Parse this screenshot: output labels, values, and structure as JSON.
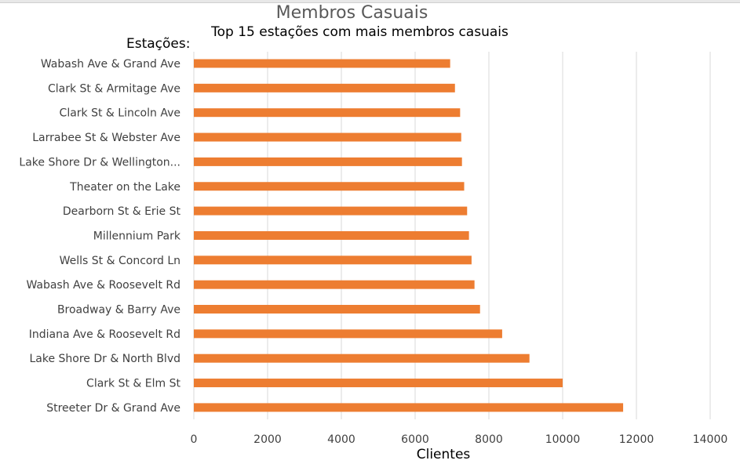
{
  "chart_data": {
    "type": "bar",
    "orientation": "horizontal",
    "title": "Membros Casuais",
    "subtitle": "Top 15 estações com mais membros casuais",
    "ylabel": "Estações:",
    "xlabel": "Clientes",
    "categories": [
      "Wabash Ave & Grand Ave",
      "Clark St & Armitage Ave",
      "Clark St & Lincoln Ave",
      "Larrabee St & Webster Ave",
      "Lake Shore Dr & Wellington...",
      "Theater on the Lake",
      "Dearborn St & Erie St",
      "Millennium Park",
      "Wells St & Concord Ln",
      "Wabash Ave & Roosevelt Rd",
      "Broadway & Barry Ave",
      "Indiana Ave & Roosevelt Rd",
      "Lake Shore Dr & North Blvd",
      "Clark St & Elm St",
      "Streeter Dr & Grand Ave"
    ],
    "values": [
      6950,
      7080,
      7220,
      7250,
      7270,
      7330,
      7410,
      7460,
      7530,
      7610,
      7760,
      8360,
      9100,
      10000,
      11640
    ],
    "xlim": [
      0,
      14000
    ],
    "xticks": [
      0,
      2000,
      4000,
      6000,
      8000,
      10000,
      12000,
      14000
    ],
    "grid": "vertical",
    "legend": "none",
    "bar_color": "#ED7D31",
    "grid_color": "#D9D9D9"
  }
}
